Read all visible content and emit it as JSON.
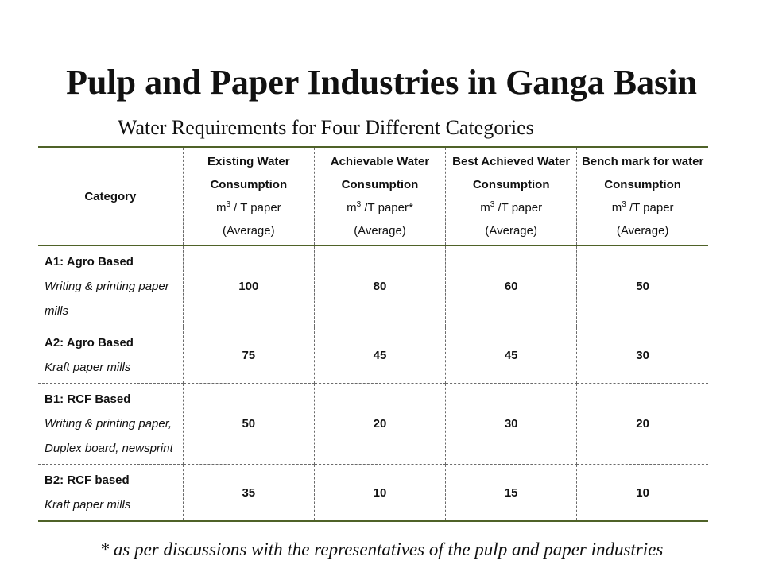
{
  "slide": {
    "title": "Pulp and Paper Industries in Ganga Basin",
    "subtitle": "Water Requirements for Four Different Categories",
    "footnote": "* as per discussions with the representatives of the pulp and paper industries"
  },
  "table": {
    "headers": [
      {
        "label": "Category",
        "unit": "",
        "unit_super": "",
        "unit_rest": "",
        "note": ""
      },
      {
        "label": "Existing Water Consumption",
        "unit": "m",
        "unit_super": "3",
        "unit_rest": " / T paper",
        "note": "(Average)"
      },
      {
        "label": "Achievable Water Consumption",
        "unit": "m",
        "unit_super": "3",
        "unit_rest": " /T paper*",
        "note": "(Average)"
      },
      {
        "label": "Best Achieved Water Consumption",
        "unit": "m",
        "unit_super": "3",
        "unit_rest": " /T paper",
        "note": "(Average)"
      },
      {
        "label": "Bench mark for water Consumption",
        "unit": "m",
        "unit_super": "3",
        "unit_rest": " /T paper",
        "note": "(Average)"
      }
    ],
    "rows": [
      {
        "category": "A1: Agro Based",
        "description": "Writing & printing paper mills",
        "values": [
          "100",
          "80",
          "60",
          "50"
        ]
      },
      {
        "category": "A2: Agro Based",
        "description": "Kraft paper mills",
        "values": [
          "75",
          "45",
          "45",
          "30"
        ]
      },
      {
        "category": "B1: RCF Based",
        "description": "Writing & printing paper, Duplex board, newsprint",
        "values": [
          "50",
          "20",
          "30",
          "20"
        ]
      },
      {
        "category": "B2: RCF based",
        "description": "Kraft paper mills",
        "values": [
          "35",
          "10",
          "15",
          "10"
        ]
      }
    ]
  },
  "colors": {
    "rule": "#4f6228",
    "grid": "#6b6b6b",
    "text": "#111111"
  }
}
